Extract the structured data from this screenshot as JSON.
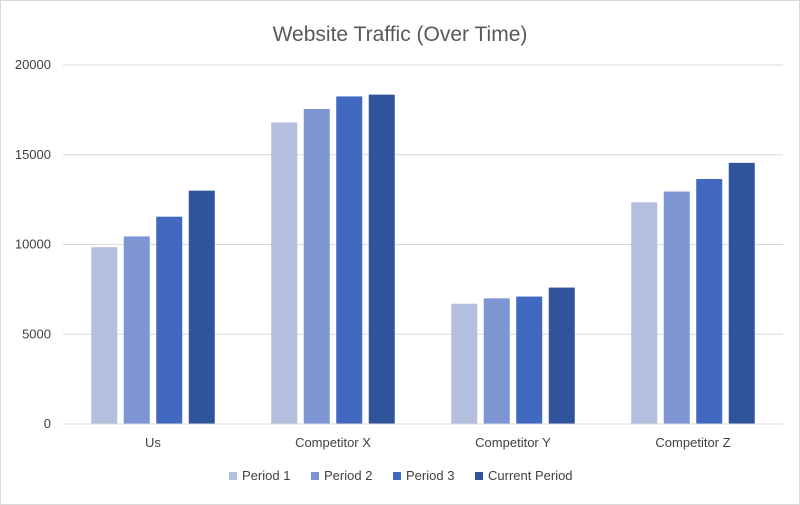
{
  "chart_data": {
    "type": "bar",
    "title": "Website Traffic (Over Time)",
    "xlabel": "",
    "ylabel": "",
    "categories": [
      "Us",
      "Competitor X",
      "Competitor Y",
      "Competitor Z"
    ],
    "series": [
      {
        "name": "Period 1",
        "color": "#b4bfe0",
        "values": [
          9850,
          16800,
          6700,
          12350
        ]
      },
      {
        "name": "Period 2",
        "color": "#7d95d2",
        "values": [
          10450,
          17550,
          7000,
          12950
        ]
      },
      {
        "name": "Period 3",
        "color": "#4169bf",
        "values": [
          11550,
          18250,
          7100,
          13650
        ]
      },
      {
        "name": "Current Period",
        "color": "#2f549c",
        "values": [
          13000,
          18350,
          7600,
          14550
        ]
      }
    ],
    "ylim": [
      0,
      20000
    ],
    "yticks": [
      "0",
      "5000",
      "10000",
      "15000",
      "20000"
    ],
    "grid": true,
    "legend_position": "bottom"
  }
}
